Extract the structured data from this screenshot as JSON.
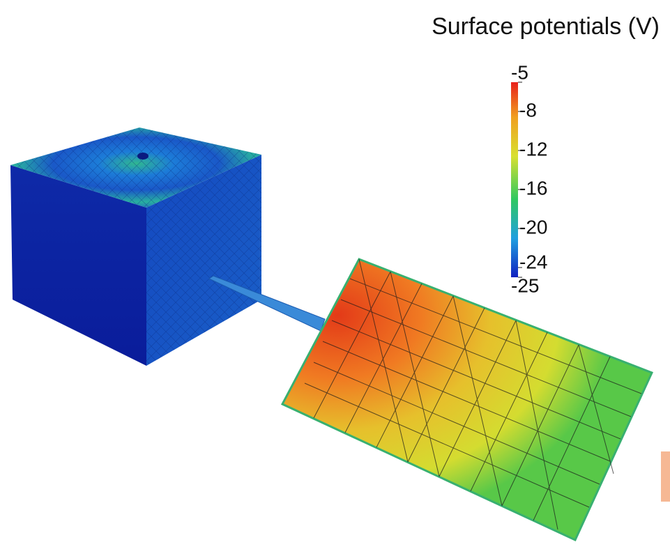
{
  "title": "Surface potentials (V)",
  "colorbar": {
    "ticks": [
      -5,
      -8,
      -12,
      -16,
      -20,
      -24,
      -25
    ],
    "range": [
      -25,
      -5
    ]
  }
}
